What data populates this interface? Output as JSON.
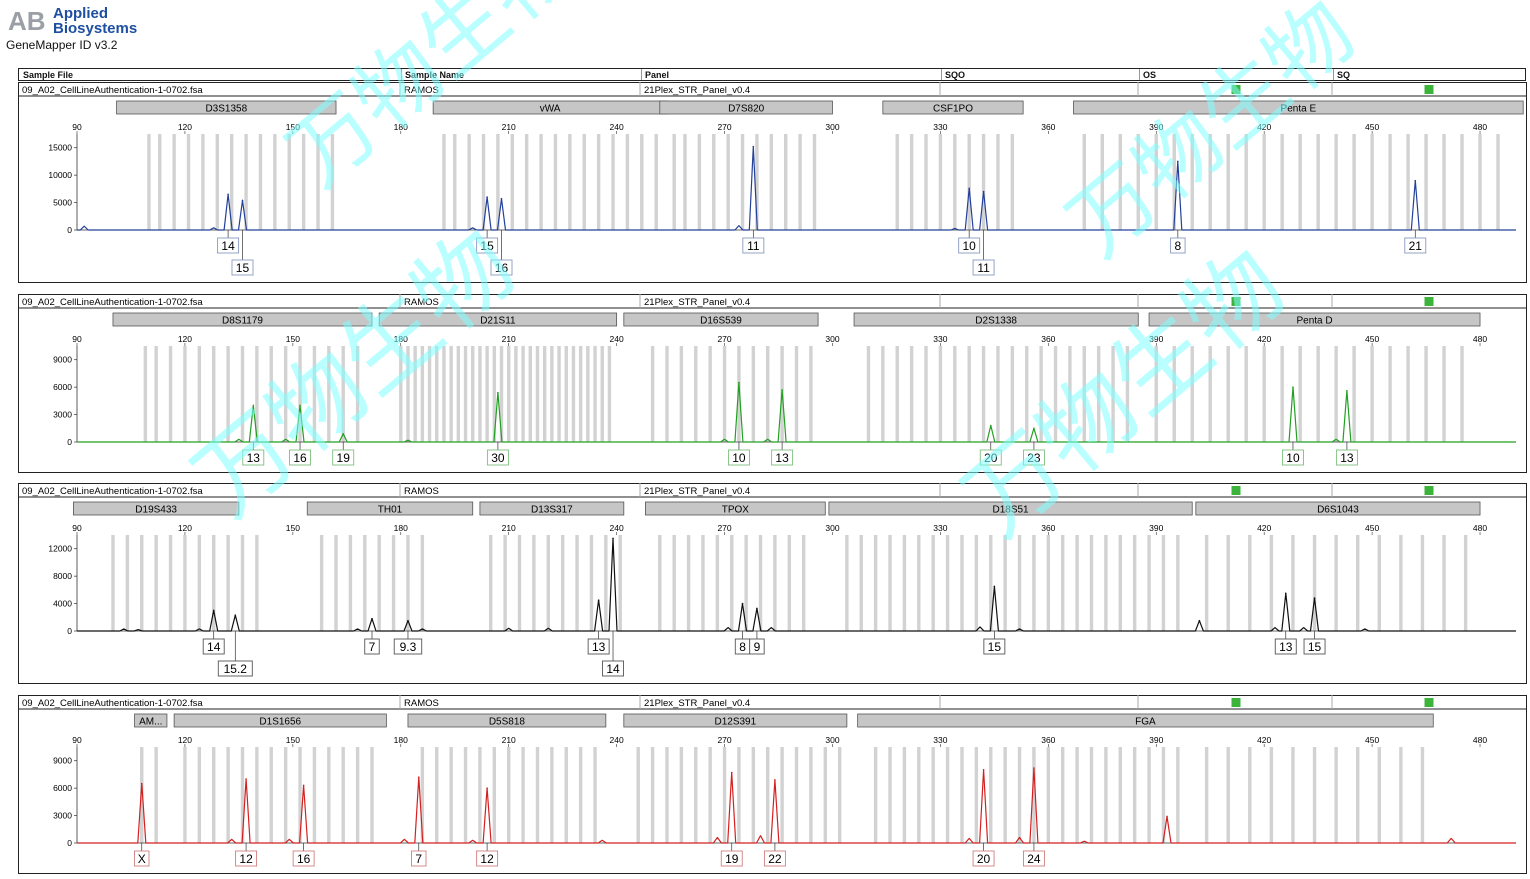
{
  "app": {
    "brand_line1": "Applied",
    "brand_line2": "Biosystems",
    "logo_mark": "AB",
    "version": "GeneMapper ID v3.2"
  },
  "watermark": "万物生物",
  "table_header": {
    "columns": [
      "Sample File",
      "Sample Name",
      "Panel",
      "SQO",
      "OS",
      "SQ"
    ]
  },
  "colors": {
    "bin": "#d2d2d2",
    "locus_box": "#c6c6c6",
    "quality_pass": "#3cb43c",
    "watermark": "#7fffff"
  },
  "chart_data": [
    {
      "type": "line",
      "panel_id": "blue",
      "color": "#23409a",
      "label_border": "#8a9abf",
      "sample_file": "09_A02_CellLineAuthentication-1-0702.fsa",
      "sample_name": "RAMOS",
      "panel_name": "21Plex_STR_Panel_v0.4",
      "quality_flags": [
        "pass",
        "pass"
      ],
      "xlim": [
        90,
        490
      ],
      "x_ticks": [
        90,
        120,
        150,
        180,
        210,
        240,
        270,
        300,
        330,
        360,
        390,
        420,
        450,
        480
      ],
      "ylim": [
        0,
        17500
      ],
      "y_ticks": [
        0,
        5000,
        10000,
        15000
      ],
      "loci": [
        {
          "name": "D3S1358",
          "start": 101,
          "end": 162
        },
        {
          "name": "vWA",
          "start": 189,
          "end": 254
        },
        {
          "name": "D7S820",
          "start": 252,
          "end": 300
        },
        {
          "name": "CSF1PO",
          "start": 314,
          "end": 353
        },
        {
          "name": "Penta E",
          "start": 367,
          "end": 492
        }
      ],
      "bins": [
        110,
        113,
        117,
        121,
        125,
        129,
        133,
        137,
        141,
        145,
        149,
        153,
        157,
        161,
        192,
        195,
        199,
        203,
        207,
        211,
        215,
        219,
        223,
        227,
        231,
        235,
        239,
        243,
        247,
        251,
        256,
        259,
        263,
        267,
        271,
        275,
        279,
        283,
        287,
        291,
        295,
        318,
        322,
        326,
        330,
        334,
        338,
        342,
        346,
        350,
        370,
        375,
        380,
        385,
        390,
        395,
        400,
        405,
        410,
        415,
        420,
        425,
        430,
        435,
        440,
        445,
        450,
        455,
        460,
        465,
        470,
        475,
        480,
        485
      ],
      "peaks": [
        {
          "x": 132,
          "height": 6500
        },
        {
          "x": 136,
          "height": 5400
        },
        {
          "x": 204,
          "height": 6000
        },
        {
          "x": 208,
          "height": 5700
        },
        {
          "x": 278,
          "height": 15200
        },
        {
          "x": 338,
          "height": 7600
        },
        {
          "x": 342,
          "height": 7000
        },
        {
          "x": 396,
          "height": 12500
        },
        {
          "x": 462,
          "height": 9000
        }
      ],
      "minor_peaks": [
        {
          "x": 92,
          "height": 700
        },
        {
          "x": 128,
          "height": 400
        },
        {
          "x": 200,
          "height": 400
        },
        {
          "x": 274,
          "height": 800
        },
        {
          "x": 334,
          "height": 300
        }
      ],
      "alleles": [
        {
          "label": "14",
          "x": 132,
          "row": 0
        },
        {
          "label": "15",
          "x": 136,
          "row": 1
        },
        {
          "label": "15",
          "x": 204,
          "row": 0
        },
        {
          "label": "16",
          "x": 208,
          "row": 1
        },
        {
          "label": "11",
          "x": 278,
          "row": 0
        },
        {
          "label": "10",
          "x": 338,
          "row": 0
        },
        {
          "label": "11",
          "x": 342,
          "row": 1
        },
        {
          "label": "8",
          "x": 396,
          "row": 0
        },
        {
          "label": "21",
          "x": 462,
          "row": 0
        }
      ]
    },
    {
      "type": "line",
      "panel_id": "green",
      "color": "#22a022",
      "label_border": "#7fbf7f",
      "sample_file": "09_A02_CellLineAuthentication-1-0702.fsa",
      "sample_name": "RAMOS",
      "panel_name": "21Plex_STR_Panel_v0.4",
      "quality_flags": [
        "pass",
        "pass"
      ],
      "xlim": [
        90,
        490
      ],
      "x_ticks": [
        90,
        120,
        150,
        180,
        210,
        240,
        270,
        300,
        330,
        360,
        390,
        420,
        450,
        480
      ],
      "ylim": [
        0,
        10500
      ],
      "y_ticks": [
        0,
        3000,
        6000,
        9000
      ],
      "loci": [
        {
          "name": "D8S1179",
          "start": 100,
          "end": 172
        },
        {
          "name": "D21S11",
          "start": 174,
          "end": 240
        },
        {
          "name": "D16S539",
          "start": 242,
          "end": 296
        },
        {
          "name": "D2S1338",
          "start": 306,
          "end": 385
        },
        {
          "name": "Penta D",
          "start": 388,
          "end": 480
        }
      ],
      "bins": [
        109,
        112,
        116,
        120,
        124,
        128,
        132,
        136,
        140,
        144,
        148,
        152,
        156,
        160,
        164,
        168,
        180,
        182,
        184,
        186,
        188,
        190,
        192,
        194,
        196,
        198,
        200,
        202,
        204,
        206,
        208,
        210,
        212,
        214,
        216,
        218,
        220,
        222,
        224,
        226,
        228,
        230,
        232,
        234,
        236,
        238,
        250,
        254,
        258,
        262,
        266,
        270,
        274,
        278,
        282,
        286,
        290,
        294,
        310,
        314,
        318,
        322,
        326,
        330,
        334,
        338,
        342,
        346,
        350,
        354,
        358,
        362,
        366,
        370,
        374,
        378,
        382,
        390,
        395,
        400,
        405,
        410,
        415,
        420,
        425,
        430,
        435,
        440,
        445,
        450,
        455,
        460,
        465,
        470,
        475
      ],
      "peaks": [
        {
          "x": 139,
          "height": 4000
        },
        {
          "x": 152,
          "height": 4000
        },
        {
          "x": 164,
          "height": 900
        },
        {
          "x": 207,
          "height": 5400
        },
        {
          "x": 274,
          "height": 6500
        },
        {
          "x": 286,
          "height": 5700
        },
        {
          "x": 344,
          "height": 1800
        },
        {
          "x": 356,
          "height": 1500
        },
        {
          "x": 428,
          "height": 6000
        },
        {
          "x": 443,
          "height": 5600
        }
      ],
      "minor_peaks": [
        {
          "x": 135,
          "height": 300
        },
        {
          "x": 148,
          "height": 300
        },
        {
          "x": 182,
          "height": 200
        },
        {
          "x": 270,
          "height": 300
        },
        {
          "x": 282,
          "height": 300
        },
        {
          "x": 440,
          "height": 300
        }
      ],
      "alleles": [
        {
          "label": "13",
          "x": 139,
          "row": 0
        },
        {
          "label": "16",
          "x": 152,
          "row": 0
        },
        {
          "label": "19",
          "x": 164,
          "row": 0
        },
        {
          "label": "30",
          "x": 207,
          "row": 0
        },
        {
          "label": "10",
          "x": 274,
          "row": 0
        },
        {
          "label": "13",
          "x": 286,
          "row": 0
        },
        {
          "label": "20",
          "x": 344,
          "row": 0
        },
        {
          "label": "23",
          "x": 356,
          "row": 0
        },
        {
          "label": "10",
          "x": 428,
          "row": 0
        },
        {
          "label": "13",
          "x": 443,
          "row": 0
        }
      ]
    },
    {
      "type": "line",
      "panel_id": "black",
      "color": "#111111",
      "label_border": "#555555",
      "sample_file": "09_A02_CellLineAuthentication-1-0702.fsa",
      "sample_name": "RAMOS",
      "panel_name": "21Plex_STR_Panel_v0.4",
      "quality_flags": [
        "pass",
        "pass"
      ],
      "xlim": [
        90,
        490
      ],
      "x_ticks": [
        90,
        120,
        150,
        180,
        210,
        240,
        270,
        300,
        330,
        360,
        390,
        420,
        450,
        480
      ],
      "ylim": [
        0,
        14000
      ],
      "y_ticks": [
        0,
        4000,
        8000,
        12000
      ],
      "loci": [
        {
          "name": "D19S433",
          "start": 89,
          "end": 135
        },
        {
          "name": "TH01",
          "start": 154,
          "end": 200
        },
        {
          "name": "D13S317",
          "start": 202,
          "end": 242
        },
        {
          "name": "TPOX",
          "start": 248,
          "end": 298
        },
        {
          "name": "D18S51",
          "start": 299,
          "end": 400
        },
        {
          "name": "D6S1043",
          "start": 401,
          "end": 480
        }
      ],
      "bins": [
        100,
        104,
        108,
        112,
        116,
        120,
        124,
        128,
        132,
        136,
        140,
        158,
        162,
        166,
        170,
        174,
        178,
        182,
        186,
        205,
        209,
        213,
        217,
        221,
        225,
        229,
        233,
        237,
        241,
        252,
        256,
        260,
        264,
        268,
        272,
        276,
        280,
        284,
        288,
        292,
        304,
        308,
        312,
        316,
        320,
        324,
        328,
        332,
        336,
        340,
        344,
        348,
        352,
        356,
        360,
        364,
        368,
        372,
        376,
        380,
        384,
        388,
        392,
        396,
        404,
        410,
        416,
        422,
        428,
        434,
        440,
        446,
        452,
        458,
        464,
        470,
        476
      ],
      "peaks": [
        {
          "x": 128,
          "height": 3000
        },
        {
          "x": 134,
          "height": 2300
        },
        {
          "x": 172,
          "height": 1800
        },
        {
          "x": 182,
          "height": 1500
        },
        {
          "x": 235,
          "height": 4500
        },
        {
          "x": 239,
          "height": 13500
        },
        {
          "x": 275,
          "height": 4000
        },
        {
          "x": 279,
          "height": 3300
        },
        {
          "x": 345,
          "height": 6500
        },
        {
          "x": 402,
          "height": 1500
        },
        {
          "x": 426,
          "height": 5500
        },
        {
          "x": 434,
          "height": 4800
        }
      ],
      "minor_peaks": [
        {
          "x": 103,
          "height": 300
        },
        {
          "x": 107,
          "height": 200
        },
        {
          "x": 124,
          "height": 300
        },
        {
          "x": 168,
          "height": 300
        },
        {
          "x": 186,
          "height": 300
        },
        {
          "x": 210,
          "height": 400
        },
        {
          "x": 221,
          "height": 400
        },
        {
          "x": 271,
          "height": 500
        },
        {
          "x": 283,
          "height": 500
        },
        {
          "x": 341,
          "height": 600
        },
        {
          "x": 352,
          "height": 300
        },
        {
          "x": 423,
          "height": 500
        },
        {
          "x": 431,
          "height": 500
        },
        {
          "x": 448,
          "height": 300
        }
      ],
      "alleles": [
        {
          "label": "14",
          "x": 128,
          "row": 0
        },
        {
          "label": "15.2",
          "x": 134,
          "row": 1
        },
        {
          "label": "7",
          "x": 172,
          "row": 0
        },
        {
          "label": "9.3",
          "x": 182,
          "row": 0
        },
        {
          "label": "13",
          "x": 235,
          "row": 0
        },
        {
          "label": "14",
          "x": 239,
          "row": 1
        },
        {
          "label": "8",
          "x": 275,
          "row": 0
        },
        {
          "label": "9",
          "x": 279,
          "row": 0
        },
        {
          "label": "15",
          "x": 345,
          "row": 0
        },
        {
          "label": "13",
          "x": 426,
          "row": 0
        },
        {
          "label": "15",
          "x": 434,
          "row": 0
        }
      ]
    },
    {
      "type": "line",
      "panel_id": "red",
      "color": "#d42020",
      "label_border": "#d08080",
      "sample_file": "09_A02_CellLineAuthentication-1-0702.fsa",
      "sample_name": "RAMOS",
      "panel_name": "21Plex_STR_Panel_v0.4",
      "quality_flags": [
        "pass",
        "pass"
      ],
      "xlim": [
        90,
        490
      ],
      "x_ticks": [
        90,
        120,
        150,
        180,
        210,
        240,
        270,
        300,
        330,
        360,
        390,
        420,
        450,
        480
      ],
      "ylim": [
        0,
        10500
      ],
      "y_ticks": [
        0,
        3000,
        6000,
        9000
      ],
      "loci": [
        {
          "name": "AM...",
          "start": 106,
          "end": 115
        },
        {
          "name": "D1S1656",
          "start": 117,
          "end": 176
        },
        {
          "name": "D5S818",
          "start": 182,
          "end": 237
        },
        {
          "name": "D12S391",
          "start": 242,
          "end": 304
        },
        {
          "name": "FGA",
          "start": 307,
          "end": 467
        }
      ],
      "bins": [
        108,
        112,
        120,
        124,
        128,
        132,
        136,
        140,
        144,
        148,
        152,
        156,
        160,
        164,
        168,
        172,
        186,
        190,
        194,
        198,
        202,
        206,
        210,
        214,
        218,
        222,
        226,
        230,
        234,
        246,
        250,
        254,
        258,
        262,
        266,
        270,
        274,
        278,
        282,
        286,
        290,
        294,
        298,
        302,
        312,
        316,
        320,
        324,
        328,
        332,
        336,
        340,
        344,
        348,
        352,
        356,
        360,
        364,
        368,
        372,
        376,
        380,
        384,
        388,
        392,
        396,
        404,
        410,
        416,
        422,
        428,
        434,
        440,
        446,
        452,
        458,
        464
      ],
      "peaks": [
        {
          "x": 108,
          "height": 6500
        },
        {
          "x": 137,
          "height": 7000
        },
        {
          "x": 153,
          "height": 6300
        },
        {
          "x": 185,
          "height": 7200
        },
        {
          "x": 204,
          "height": 6000
        },
        {
          "x": 272,
          "height": 7700
        },
        {
          "x": 284,
          "height": 6900
        },
        {
          "x": 342,
          "height": 8000
        },
        {
          "x": 356,
          "height": 8200
        },
        {
          "x": 393,
          "height": 2900
        }
      ],
      "minor_peaks": [
        {
          "x": 133,
          "height": 400
        },
        {
          "x": 149,
          "height": 400
        },
        {
          "x": 181,
          "height": 400
        },
        {
          "x": 200,
          "height": 300
        },
        {
          "x": 236,
          "height": 300
        },
        {
          "x": 268,
          "height": 600
        },
        {
          "x": 280,
          "height": 800
        },
        {
          "x": 338,
          "height": 500
        },
        {
          "x": 352,
          "height": 600
        },
        {
          "x": 370,
          "height": 200
        },
        {
          "x": 472,
          "height": 500
        }
      ],
      "alleles": [
        {
          "label": "X",
          "x": 108,
          "row": 0
        },
        {
          "label": "12",
          "x": 137,
          "row": 0
        },
        {
          "label": "16",
          "x": 153,
          "row": 0
        },
        {
          "label": "7",
          "x": 185,
          "row": 0
        },
        {
          "label": "12",
          "x": 204,
          "row": 0
        },
        {
          "label": "19",
          "x": 272,
          "row": 0
        },
        {
          "label": "22",
          "x": 284,
          "row": 0
        },
        {
          "label": "20",
          "x": 342,
          "row": 0
        },
        {
          "label": "24",
          "x": 356,
          "row": 0
        }
      ]
    }
  ]
}
